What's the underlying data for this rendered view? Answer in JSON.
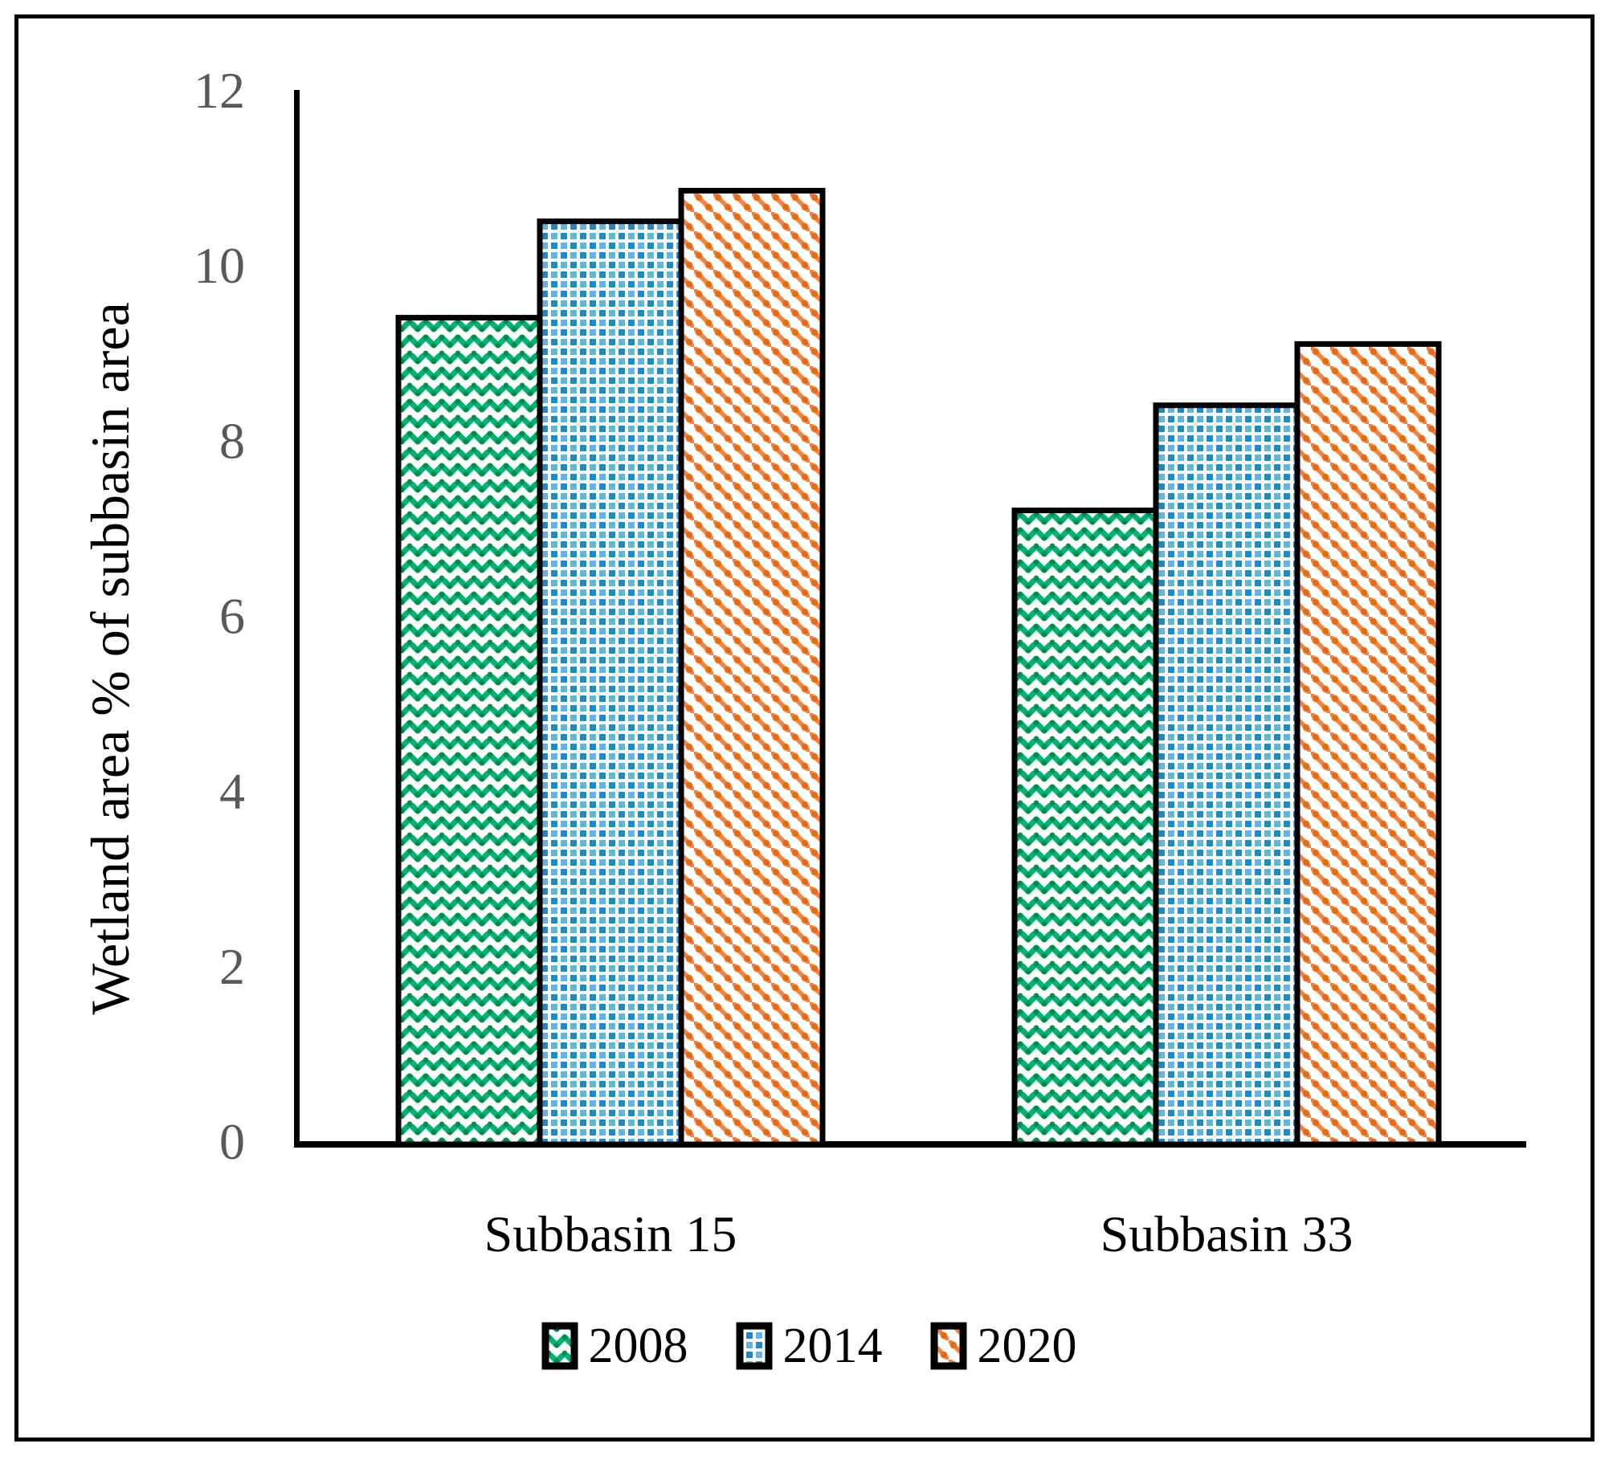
{
  "chart_data": {
    "type": "bar",
    "title": "",
    "categories": [
      "Subbasin 15",
      "Subbasin 33"
    ],
    "series": [
      {
        "name": "2008",
        "values": [
          9.4,
          7.2
        ],
        "pattern": "green-weave",
        "color": "#00B377"
      },
      {
        "name": "2014",
        "values": [
          10.5,
          8.4
        ],
        "pattern": "blue-grid",
        "color": "#2E9BD6"
      },
      {
        "name": "2020",
        "values": [
          10.85,
          9.1
        ],
        "pattern": "orange-diagonal",
        "color": "#F07F2E"
      }
    ],
    "xlabel": "",
    "ylabel": "Wetland area % of subbasin area",
    "ylim": [
      0,
      12
    ],
    "yticks": [
      0,
      2,
      4,
      6,
      8,
      10,
      12
    ],
    "grid": false,
    "legend_position": "bottom",
    "tick_color": "#595959",
    "axis_color": "#000000",
    "background_color": "#ffffff"
  }
}
